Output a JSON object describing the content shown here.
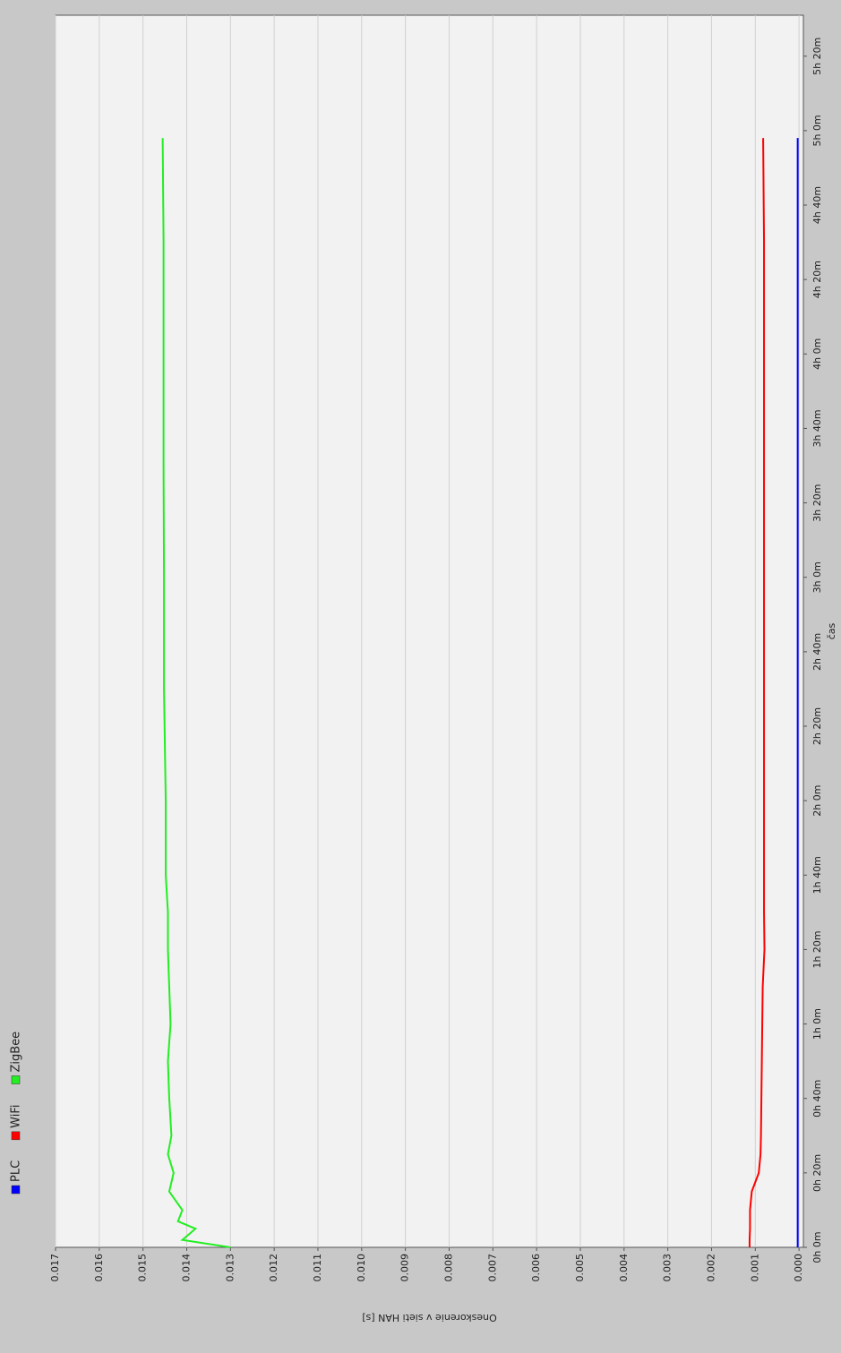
{
  "chart_data": {
    "type": "line",
    "x_label": "čas",
    "y_label": "Oneskorenie v sieti HAN [s]",
    "x": [
      0,
      2,
      5,
      7,
      10,
      15,
      20,
      25,
      30,
      40,
      50,
      60,
      70,
      80,
      90,
      100,
      120,
      150,
      180,
      210,
      240,
      270,
      298
    ],
    "series": [
      {
        "name": "PLC",
        "color": "#0000ff",
        "values": [
          3e-05,
          3e-05,
          3e-05,
          3e-05,
          3e-05,
          3e-05,
          3e-05,
          3e-05,
          3e-05,
          3e-05,
          3e-05,
          3e-05,
          3e-05,
          3e-05,
          3e-05,
          3e-05,
          3e-05,
          3e-05,
          3e-05,
          3e-05,
          3e-05,
          3e-05,
          3e-05
        ]
      },
      {
        "name": "WiFi",
        "color": "#ff0000",
        "values": [
          0.00113,
          0.00113,
          0.00112,
          0.00112,
          0.00112,
          0.00108,
          0.00092,
          0.00088,
          0.00087,
          0.00086,
          0.00085,
          0.00084,
          0.00083,
          0.00079,
          0.0008,
          0.0008,
          0.0008,
          0.0008,
          0.0008,
          0.0008,
          0.0008,
          0.0008,
          0.00082
        ]
      },
      {
        "name": "ZigBee",
        "color": "#22ee22",
        "values": [
          0.013,
          0.0141,
          0.0138,
          0.0142,
          0.0141,
          0.0144,
          0.0143,
          0.01443,
          0.01435,
          0.0144,
          0.01443,
          0.01437,
          0.0144,
          0.01443,
          0.01443,
          0.01448,
          0.01448,
          0.01452,
          0.01452,
          0.01453,
          0.01453,
          0.01453,
          0.01455
        ]
      }
    ],
    "xlim": [
      0,
      331
    ],
    "xticks": [
      {
        "value": 0,
        "label": "0h 0m"
      },
      {
        "value": 20,
        "label": "0h 20m"
      },
      {
        "value": 40,
        "label": "0h 40m"
      },
      {
        "value": 60,
        "label": "1h 0m"
      },
      {
        "value": 80,
        "label": "1h 20m"
      },
      {
        "value": 100,
        "label": "1h 40m"
      },
      {
        "value": 120,
        "label": "2h 0m"
      },
      {
        "value": 140,
        "label": "2h 20m"
      },
      {
        "value": 160,
        "label": "2h 40m"
      },
      {
        "value": 180,
        "label": "3h 0m"
      },
      {
        "value": 200,
        "label": "3h 20m"
      },
      {
        "value": 220,
        "label": "3h 40m"
      },
      {
        "value": 240,
        "label": "4h 0m"
      },
      {
        "value": 260,
        "label": "4h 20m"
      },
      {
        "value": 280,
        "label": "4h 40m"
      },
      {
        "value": 300,
        "label": "5h 0m"
      },
      {
        "value": 320,
        "label": "5h 20m"
      }
    ],
    "ylim": [
      -0.0001,
      0.017
    ],
    "yticks": [
      {
        "value": 0,
        "label": "0.000"
      },
      {
        "value": 0.001,
        "label": "0.001"
      },
      {
        "value": 0.002,
        "label": "0.002"
      },
      {
        "value": 0.003,
        "label": "0.003"
      },
      {
        "value": 0.004,
        "label": "0.004"
      },
      {
        "value": 0.005,
        "label": "0.005"
      },
      {
        "value": 0.006,
        "label": "0.006"
      },
      {
        "value": 0.007,
        "label": "0.007"
      },
      {
        "value": 0.008,
        "label": "0.008"
      },
      {
        "value": 0.009,
        "label": "0.009"
      },
      {
        "value": 0.01,
        "label": "0.010"
      },
      {
        "value": 0.011,
        "label": "0.011"
      },
      {
        "value": 0.012,
        "label": "0.012"
      },
      {
        "value": 0.013,
        "label": "0.013"
      },
      {
        "value": 0.014,
        "label": "0.014"
      },
      {
        "value": 0.015,
        "label": "0.015"
      },
      {
        "value": 0.016,
        "label": "0.016"
      },
      {
        "value": 0.017,
        "label": "0.017"
      }
    ],
    "grid": true,
    "legend": "top-left"
  }
}
